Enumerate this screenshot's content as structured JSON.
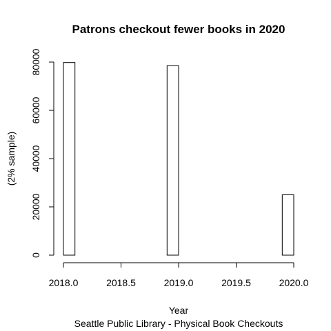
{
  "chart_data": {
    "type": "bar",
    "title": "Patrons checkout fewer books in 2020",
    "xlabel": "Year",
    "subtitle": "Seattle Public Library - Physical Book Checkouts",
    "ylabel_line1": "",
    "ylabel_line2": "(2% sample)",
    "bins": [
      {
        "x_start": 2018.0,
        "x_end": 2018.1,
        "value": 79800
      },
      {
        "x_start": 2018.9,
        "x_end": 2019.0,
        "value": 78500
      },
      {
        "x_start": 2019.9,
        "x_end": 2020.0,
        "value": 25000
      }
    ],
    "xlim": [
      2018.0,
      2020.0
    ],
    "ylim": [
      0,
      80000
    ],
    "x_ticks": [
      2018.0,
      2018.5,
      2019.0,
      2019.5,
      2020.0
    ],
    "x_tick_labels": [
      "2018.0",
      "2018.5",
      "2019.0",
      "2019.5",
      "2020.0"
    ],
    "y_ticks": [
      0,
      20000,
      40000,
      60000,
      80000
    ],
    "y_tick_labels": [
      "0",
      "20000",
      "40000",
      "60000",
      "80000"
    ],
    "grid": false,
    "legend": "none"
  }
}
